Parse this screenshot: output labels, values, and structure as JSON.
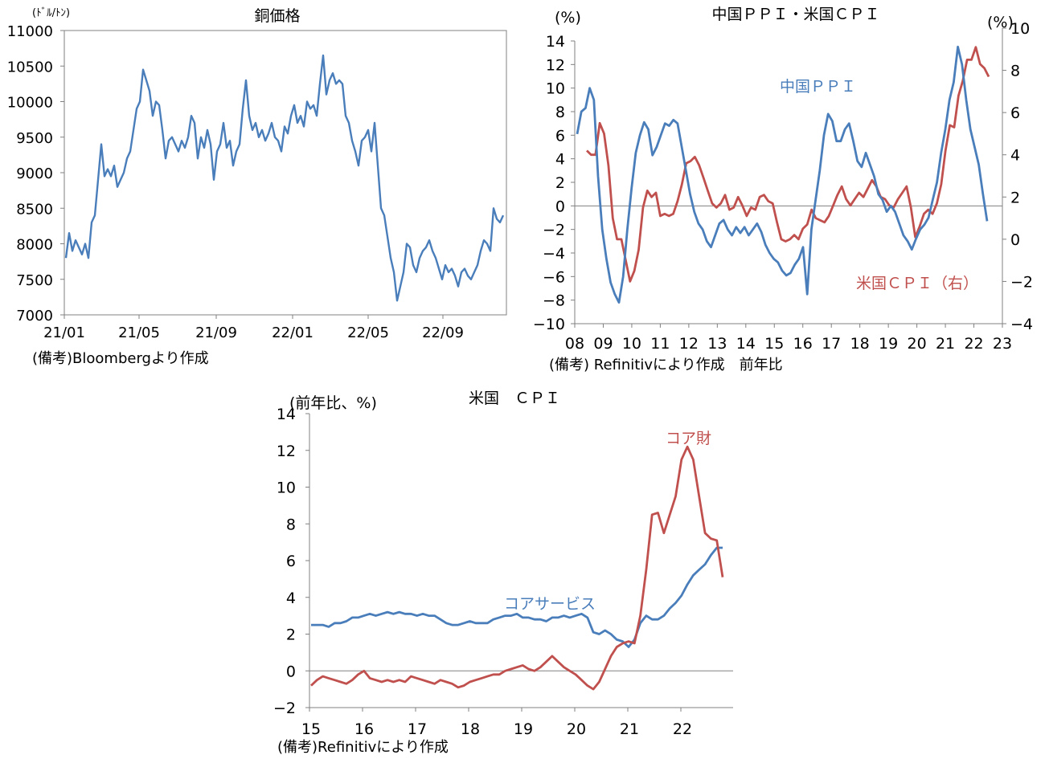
{
  "chart_data": [
    {
      "type": "line",
      "title": "銅価格",
      "ylabel": "(ﾄﾞﾙ/ﾄﾝ)",
      "ylim": [
        7000,
        11000
      ],
      "yticks": [
        "11000",
        "10500",
        "10000",
        "9500",
        "9000",
        "8500",
        "8000",
        "7500",
        "7000"
      ],
      "xticks": [
        "21/01",
        "21/05",
        "21/09",
        "22/01",
        "22/05",
        "22/09"
      ],
      "note": "(備考)Bloombergより作成",
      "series": [
        {
          "color": "#4a7ebb",
          "x_start": "21/01",
          "x_end": "22/11",
          "values": [
            7800,
            8150,
            7900,
            8050,
            7950,
            7850,
            8000,
            7800,
            8300,
            8400,
            8900,
            9400,
            8950,
            9050,
            8950,
            9100,
            8800,
            8900,
            9000,
            9200,
            9300,
            9600,
            9900,
            10000,
            10450,
            10300,
            10150,
            9800,
            10000,
            9950,
            9600,
            9200,
            9450,
            9500,
            9400,
            9300,
            9450,
            9350,
            9500,
            9800,
            9700,
            9200,
            9500,
            9350,
            9600,
            9400,
            8900,
            9300,
            9400,
            9700,
            9350,
            9450,
            9100,
            9300,
            9400,
            9900,
            10300,
            9800,
            9600,
            9700,
            9500,
            9600,
            9450,
            9550,
            9700,
            9500,
            9450,
            9300,
            9650,
            9550,
            9800,
            9950,
            9700,
            9800,
            9650,
            10000,
            9900,
            9950,
            9800,
            10250,
            10650,
            10100,
            10300,
            10400,
            10250,
            10300,
            10250,
            9800,
            9700,
            9450,
            9300,
            9100,
            9450,
            9500,
            9600,
            9300,
            9700,
            9100,
            8500,
            8400,
            8100,
            7800,
            7600,
            7200,
            7400,
            7600,
            8000,
            7950,
            7700,
            7600,
            7800,
            7900,
            7950,
            8050,
            7900,
            7800,
            7650,
            7500,
            7700,
            7600,
            7650,
            7550,
            7400,
            7600,
            7650,
            7550,
            7500,
            7600,
            7700,
            7900,
            8050,
            8000,
            7900,
            8500,
            8350,
            8300,
            8400
          ]
        }
      ]
    },
    {
      "type": "line",
      "title": "中国ＰＰＩ・米国ＣＰＩ",
      "ylabel_left": "(%)",
      "ylabel_right": "(%)",
      "ylim_left": [
        -10,
        14
      ],
      "ylim_right": [
        -4,
        10
      ],
      "yticks_left": [
        "14",
        "12",
        "10",
        "8",
        "6",
        "4",
        "2",
        "0",
        "−2",
        "−4",
        "−6",
        "−8",
        "−10"
      ],
      "yticks_right": [
        "10",
        "8",
        "6",
        "4",
        "2",
        "0",
        "−2",
        "−4"
      ],
      "xticks": [
        "08",
        "09",
        "10",
        "11",
        "12",
        "13",
        "14",
        "15",
        "16",
        "17",
        "18",
        "19",
        "20",
        "21",
        "22",
        "23"
      ],
      "note": "(備考) Refinitivにより作成　前年比",
      "series": [
        {
          "name": "中国ＰＰＩ",
          "axis": "left",
          "color": "#4a7ebb",
          "values": [
            6.1,
            8.0,
            8.3,
            10.0,
            9.0,
            2.5,
            -2.0,
            -4.5,
            -6.5,
            -7.5,
            -8.2,
            -6.0,
            -2.0,
            1.5,
            4.5,
            6.0,
            7.1,
            6.5,
            4.3,
            5.0,
            6.0,
            7.0,
            6.8,
            7.3,
            7.0,
            5.0,
            3.0,
            1.0,
            -0.5,
            -1.5,
            -2.0,
            -3.0,
            -3.5,
            -2.5,
            -1.5,
            -1.2,
            -2.0,
            -2.5,
            -1.8,
            -2.3,
            -1.8,
            -2.5,
            -2.0,
            -1.5,
            -2.2,
            -3.3,
            -4.0,
            -4.5,
            -4.8,
            -5.5,
            -5.9,
            -5.7,
            -5.0,
            -4.5,
            -3.5,
            -7.5,
            -2.0,
            0.5,
            3.0,
            6.0,
            7.8,
            7.2,
            5.5,
            5.5,
            6.5,
            7.0,
            5.5,
            3.8,
            3.3,
            4.5,
            3.5,
            2.5,
            1.0,
            0.5,
            -0.5,
            0.0,
            -0.5,
            -1.5,
            -2.5,
            -3.0,
            -3.7,
            -2.8,
            -2.0,
            -1.6,
            -1.0,
            0.5,
            2.0,
            4.5,
            6.5,
            9.0,
            10.5,
            13.5,
            12.0,
            9.0,
            6.5,
            5.0,
            3.5,
            1.0,
            -1.3
          ]
        },
        {
          "name": "米国ＣＰＩ（右）",
          "axis": "right",
          "color": "#c0504d",
          "values": [
            4.2,
            4.0,
            4.0,
            5.5,
            5.0,
            3.5,
            1.0,
            0.0,
            0.0,
            -1.0,
            -2.0,
            -1.5,
            -0.5,
            1.5,
            2.3,
            2.0,
            2.2,
            1.1,
            1.2,
            1.1,
            1.2,
            1.8,
            2.6,
            3.6,
            3.7,
            3.9,
            3.5,
            2.9,
            2.3,
            1.7,
            1.5,
            1.7,
            2.1,
            1.4,
            1.5,
            2.0,
            1.6,
            1.1,
            1.5,
            1.4,
            2.0,
            2.1,
            1.8,
            1.7,
            0.8,
            0.0,
            -0.1,
            0.0,
            0.2,
            0.0,
            0.5,
            0.7,
            1.4,
            1.0,
            0.9,
            0.8,
            1.1,
            1.6,
            2.1,
            2.5,
            1.9,
            1.6,
            1.9,
            2.2,
            2.0,
            2.4,
            2.8,
            2.5,
            2.0,
            1.9,
            1.6,
            1.5,
            1.9,
            2.2,
            2.5,
            1.5,
            0.1,
            0.6,
            1.2,
            1.4,
            1.2,
            1.7,
            2.6,
            4.2,
            5.4,
            5.3,
            6.8,
            7.5,
            8.5,
            8.5,
            9.1,
            8.3,
            8.1,
            7.7
          ]
        }
      ]
    },
    {
      "type": "line",
      "title": "米国　ＣＰＩ",
      "ylabel": "(前年比、%)",
      "ylim": [
        -2,
        14
      ],
      "yticks": [
        "14",
        "12",
        "10",
        "8",
        "6",
        "4",
        "2",
        "0",
        "−2"
      ],
      "xticks": [
        "15",
        "16",
        "17",
        "18",
        "19",
        "20",
        "21",
        "22"
      ],
      "note": "(備考)Refinitivにより作成",
      "series": [
        {
          "name": "コアサービス",
          "color": "#4a7ebb",
          "values": [
            2.5,
            2.5,
            2.5,
            2.4,
            2.6,
            2.6,
            2.7,
            2.9,
            2.9,
            3.0,
            3.1,
            3.0,
            3.1,
            3.2,
            3.1,
            3.2,
            3.1,
            3.1,
            3.0,
            3.1,
            3.0,
            3.0,
            2.8,
            2.6,
            2.5,
            2.5,
            2.6,
            2.7,
            2.6,
            2.6,
            2.6,
            2.8,
            2.9,
            3.0,
            3.0,
            3.1,
            2.9,
            2.9,
            2.8,
            2.8,
            2.7,
            2.9,
            2.9,
            3.0,
            2.9,
            3.0,
            3.1,
            2.9,
            2.1,
            2.0,
            2.2,
            2.0,
            1.7,
            1.6,
            1.3,
            1.7,
            2.6,
            3.0,
            2.8,
            2.8,
            3.0,
            3.4,
            3.7,
            4.1,
            4.7,
            5.2,
            5.5,
            5.8,
            6.3,
            6.7,
            6.7
          ]
        },
        {
          "name": "コア財",
          "color": "#c0504d",
          "values": [
            -0.8,
            -0.5,
            -0.3,
            -0.4,
            -0.5,
            -0.6,
            -0.7,
            -0.5,
            -0.2,
            0.0,
            -0.4,
            -0.5,
            -0.6,
            -0.5,
            -0.6,
            -0.5,
            -0.6,
            -0.3,
            -0.4,
            -0.5,
            -0.6,
            -0.7,
            -0.5,
            -0.6,
            -0.7,
            -0.9,
            -0.8,
            -0.6,
            -0.5,
            -0.4,
            -0.3,
            -0.2,
            -0.2,
            0.0,
            0.1,
            0.2,
            0.3,
            0.1,
            0.0,
            0.2,
            0.5,
            0.8,
            0.5,
            0.2,
            0.0,
            -0.2,
            -0.5,
            -0.8,
            -1.0,
            -0.6,
            0.1,
            0.8,
            1.3,
            1.5,
            1.6,
            1.5,
            3.0,
            5.5,
            8.5,
            8.6,
            7.5,
            8.5,
            9.5,
            11.5,
            12.2,
            11.5,
            9.5,
            7.5,
            7.2,
            7.1,
            5.1
          ]
        }
      ]
    }
  ]
}
